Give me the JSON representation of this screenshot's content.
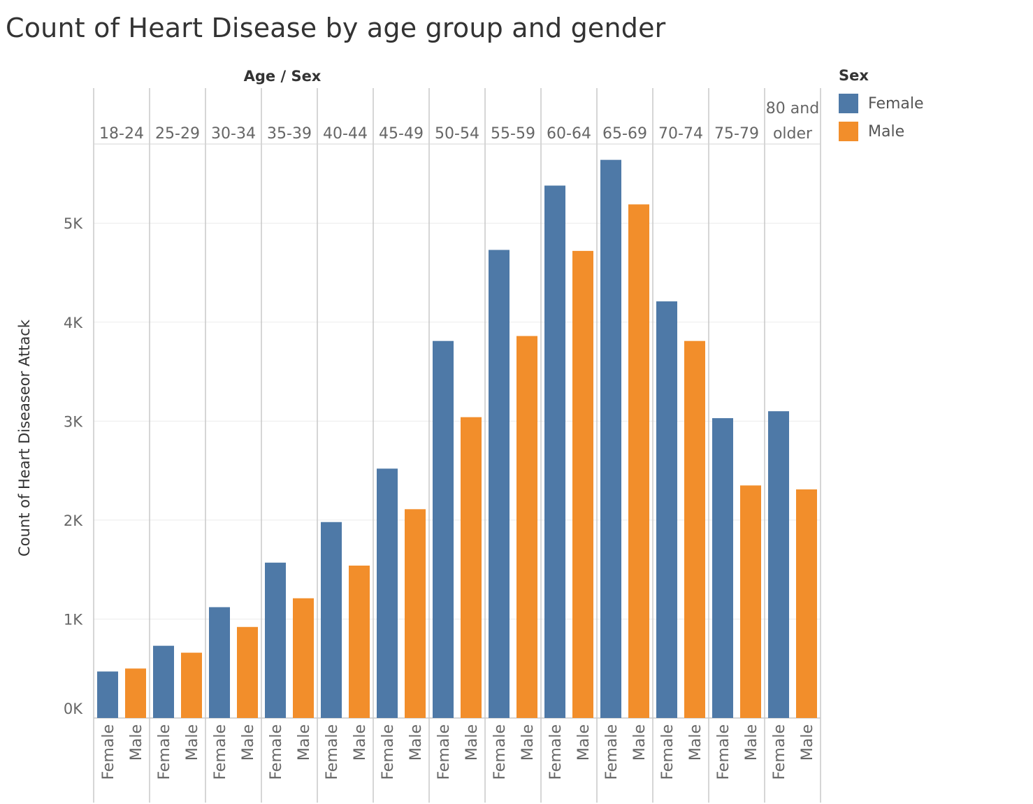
{
  "title": "Count of Heart Disease by age group and gender",
  "chart_data": {
    "type": "bar",
    "title": "Count of Heart Disease by age group and gender",
    "column_header": "Age / Sex",
    "ylabel": "Count of Heart Diseaseor Attack",
    "ylim": [
      0,
      5800
    ],
    "yticks": [
      {
        "value": 0,
        "label": "0K"
      },
      {
        "value": 1000,
        "label": "1K"
      },
      {
        "value": 2000,
        "label": "2K"
      },
      {
        "value": 3000,
        "label": "3K"
      },
      {
        "value": 4000,
        "label": "4K"
      },
      {
        "value": 5000,
        "label": "5K"
      }
    ],
    "grid": true,
    "legend_position": "top-right",
    "legend_title": "Sex",
    "categories": [
      {
        "label": [
          "18-24"
        ]
      },
      {
        "label": [
          "25-29"
        ]
      },
      {
        "label": [
          "30-34"
        ]
      },
      {
        "label": [
          "35-39"
        ]
      },
      {
        "label": [
          "40-44"
        ]
      },
      {
        "label": [
          "45-49"
        ]
      },
      {
        "label": [
          "50-54"
        ]
      },
      {
        "label": [
          "55-59"
        ]
      },
      {
        "label": [
          "60-64"
        ]
      },
      {
        "label": [
          "65-69"
        ]
      },
      {
        "label": [
          "70-74"
        ]
      },
      {
        "label": [
          "75-79"
        ]
      },
      {
        "label": [
          "80 and",
          "older"
        ]
      }
    ],
    "series": [
      {
        "name": "Female",
        "color": "#4e79a7",
        "values": [
          470,
          730,
          1120,
          1570,
          1980,
          2520,
          3810,
          4730,
          5380,
          5640,
          4210,
          3030,
          3100
        ]
      },
      {
        "name": "Male",
        "color": "#f28e2b",
        "values": [
          500,
          660,
          920,
          1210,
          1540,
          2110,
          3040,
          3860,
          4720,
          5190,
          3810,
          2350,
          2310
        ]
      }
    ]
  }
}
